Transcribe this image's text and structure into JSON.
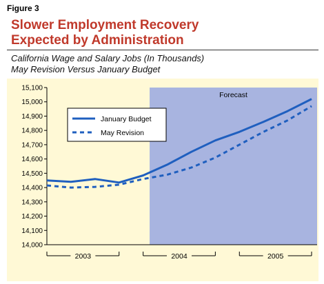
{
  "figure_label": "Figure 3",
  "title_lines": [
    "Slower Employment Recovery",
    "Expected by Administration"
  ],
  "subtitle_lines": [
    "California Wage and Salary Jobs (In Thousands)",
    "May Revision Versus January Budget"
  ],
  "colors": {
    "title": "#c0392b",
    "series": "#1f5fbf",
    "forecast_band": "#a8b4e0",
    "plot_background": "#fff9d6"
  },
  "chart_data": {
    "type": "line",
    "x": [
      "2003-Q1",
      "2003-Q2",
      "2003-Q3",
      "2003-Q4",
      "2004-Q1",
      "2004-Q2",
      "2004-Q3",
      "2004-Q4",
      "2005-Q1",
      "2005-Q2",
      "2005-Q3",
      "2005-Q4"
    ],
    "series": [
      {
        "name": "January Budget",
        "style": "solid",
        "values": [
          14450,
          14440,
          14460,
          14435,
          14485,
          14560,
          14650,
          14730,
          14790,
          14860,
          14935,
          15020
        ]
      },
      {
        "name": "May Revision",
        "style": "dashed",
        "values": [
          14415,
          14400,
          14405,
          14420,
          14460,
          14490,
          14540,
          14610,
          14700,
          14790,
          14870,
          14970
        ]
      }
    ],
    "ylim": [
      14000,
      15100
    ],
    "yticks": [
      14000,
      14100,
      14200,
      14300,
      14400,
      14500,
      14600,
      14700,
      14800,
      14900,
      15000,
      15100
    ],
    "ytick_labels": [
      "14,000",
      "14,100",
      "14,200",
      "14,300",
      "14,400",
      "14,500",
      "14,600",
      "14,700",
      "14,800",
      "14,900",
      "15,000",
      "15,100"
    ],
    "year_groups": [
      {
        "label": "2003",
        "from": "2003-Q1",
        "to": "2003-Q4"
      },
      {
        "label": "2004",
        "from": "2004-Q1",
        "to": "2004-Q4"
      },
      {
        "label": "2005",
        "from": "2005-Q1",
        "to": "2005-Q4"
      }
    ],
    "forecast_region": {
      "label": "Forecast",
      "from": "2004-Q2",
      "to": "2005-Q4"
    },
    "legend_position": "top-left",
    "grid": false
  }
}
